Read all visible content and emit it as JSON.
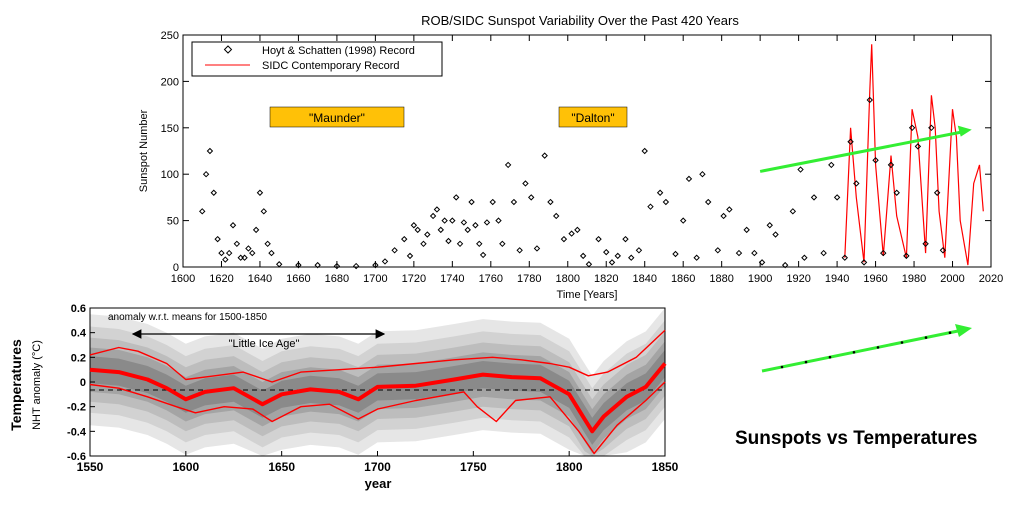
{
  "caption": "Sunspots vs Temperatures",
  "chart_data": [
    {
      "type": "scatter",
      "title": "ROB/SIDC Sunspot Variability Over the Past 420 Years",
      "xlabel": "Time [Years]",
      "ylabel": "Sunspot Number",
      "xlim": [
        1600,
        2020
      ],
      "ylim": [
        0,
        250
      ],
      "x_ticks": [
        1600,
        1620,
        1640,
        1660,
        1680,
        1700,
        1720,
        1740,
        1760,
        1780,
        1800,
        1820,
        1840,
        1860,
        1880,
        1900,
        1920,
        1940,
        1960,
        1980,
        2000,
        2020
      ],
      "y_ticks": [
        0,
        50,
        100,
        150,
        200,
        250
      ],
      "grid": false,
      "legend_position": "top-left",
      "annotations": [
        "\"Maunder\"",
        "\"Dalton\""
      ],
      "annotation_color": "#FFC107",
      "trend_arrow": {
        "x": [
          1900,
          2010
        ],
        "y": [
          103,
          148
        ],
        "color": "#33EE33"
      },
      "series": [
        {
          "name": "Hoyt & Schatten (1998) Record",
          "marker": "diamond",
          "color": "#000000",
          "x": [
            1610,
            1612,
            1614,
            1616,
            1618,
            1620,
            1622,
            1624,
            1626,
            1628,
            1630,
            1632,
            1634,
            1636,
            1638,
            1640,
            1642,
            1644,
            1646,
            1650,
            1660,
            1670,
            1680,
            1690,
            1700,
            1705,
            1710,
            1715,
            1718,
            1720,
            1722,
            1725,
            1727,
            1730,
            1732,
            1734,
            1736,
            1738,
            1740,
            1742,
            1744,
            1746,
            1748,
            1750,
            1752,
            1754,
            1756,
            1758,
            1761,
            1764,
            1766,
            1769,
            1772,
            1775,
            1778,
            1781,
            1784,
            1788,
            1791,
            1794,
            1798,
            1802,
            1805,
            1808,
            1811,
            1816,
            1820,
            1823,
            1826,
            1830,
            1833,
            1837,
            1840,
            1843,
            1848,
            1851,
            1856,
            1860,
            1863,
            1867,
            1870,
            1873,
            1878,
            1881,
            1884,
            1889,
            1893,
            1897,
            1901,
            1905,
            1908,
            1913,
            1917,
            1921,
            1923,
            1928,
            1933,
            1937,
            1940,
            1944,
            1947,
            1950,
            1954,
            1957,
            1960,
            1964,
            1968,
            1971,
            1976,
            1979,
            1982,
            1986,
            1989,
            1992,
            1995
          ],
          "y": [
            60,
            100,
            125,
            80,
            30,
            15,
            8,
            15,
            45,
            25,
            10,
            10,
            20,
            15,
            40,
            80,
            60,
            25,
            15,
            3,
            2,
            2,
            1,
            1,
            2,
            6,
            18,
            30,
            12,
            45,
            40,
            25,
            35,
            55,
            62,
            40,
            50,
            28,
            50,
            75,
            25,
            48,
            40,
            70,
            45,
            25,
            13,
            48,
            70,
            50,
            25,
            110,
            70,
            18,
            90,
            75,
            20,
            120,
            70,
            55,
            30,
            36,
            40,
            12,
            3,
            30,
            16,
            5,
            12,
            30,
            10,
            18,
            125,
            65,
            80,
            70,
            14,
            50,
            95,
            10,
            100,
            70,
            18,
            55,
            62,
            15,
            40,
            15,
            5,
            45,
            35,
            2,
            60,
            105,
            10,
            75,
            15,
            110,
            75,
            10,
            135,
            90,
            5,
            180,
            115,
            15,
            110,
            80,
            12,
            150,
            130,
            25,
            150,
            80,
            18
          ]
        },
        {
          "name": "SIDC Contemporary Record",
          "line": true,
          "color": "#FF0000",
          "x": [
            1944,
            1947,
            1950,
            1954,
            1957,
            1958,
            1960,
            1964,
            1968,
            1971,
            1976,
            1979,
            1982,
            1986,
            1989,
            1991,
            1993,
            1996,
            2000,
            2002,
            2004,
            2008,
            2011,
            2014,
            2016
          ],
          "y": [
            10,
            150,
            75,
            5,
            190,
            240,
            110,
            12,
            120,
            55,
            10,
            170,
            140,
            15,
            185,
            150,
            60,
            10,
            170,
            140,
            50,
            2,
            90,
            110,
            60
          ]
        }
      ]
    },
    {
      "type": "line",
      "title": "anomaly w.r.t. means for 1500-1850",
      "xlabel": "year",
      "ylabel": "Temperatures",
      "ylabel2": "NHT anomaly (°C)",
      "xlim": [
        1550,
        1850
      ],
      "ylim": [
        -0.6,
        0.6
      ],
      "x_ticks": [
        1550,
        1600,
        1650,
        1700,
        1750,
        1800,
        1850
      ],
      "y_ticks": [
        0.6,
        0.4,
        0.2,
        0,
        -0.2,
        -0.4,
        -0.6
      ],
      "y_tick_labels": [
        "0.6",
        "0.4",
        "0.2",
        "0",
        "-0.2",
        "-0.4",
        "-0.6"
      ],
      "annotations": [
        "\"Little Ice Age\""
      ],
      "span_arrow": [
        1570,
        1705
      ],
      "trend_arrow": {
        "color": "#33EE33"
      },
      "series": [
        {
          "color": "#FF0000",
          "x": [
            1550,
            1565,
            1580,
            1590,
            1600,
            1610,
            1625,
            1640,
            1650,
            1665,
            1680,
            1690,
            1700,
            1720,
            1740,
            1755,
            1770,
            1785,
            1800,
            1808,
            1812,
            1818,
            1830,
            1840,
            1850
          ],
          "y": [
            0.1,
            0.08,
            0.02,
            -0.05,
            -0.14,
            -0.08,
            -0.05,
            -0.18,
            -0.1,
            -0.06,
            -0.08,
            -0.14,
            -0.04,
            -0.03,
            0.02,
            0.06,
            0.04,
            0.03,
            -0.1,
            -0.3,
            -0.4,
            -0.28,
            -0.12,
            -0.04,
            0.15
          ]
        },
        {
          "color": "#FF0000",
          "x": [
            1550,
            1565,
            1575,
            1590,
            1600,
            1615,
            1630,
            1645,
            1660,
            1680,
            1700,
            1720,
            1740,
            1760,
            1775,
            1790,
            1800,
            1810,
            1820,
            1835,
            1850
          ],
          "y": [
            0.22,
            0.28,
            0.25,
            0.15,
            0.02,
            0.05,
            0.08,
            0.0,
            0.08,
            0.1,
            0.12,
            0.15,
            0.18,
            0.2,
            0.18,
            0.15,
            0.12,
            0.05,
            0.08,
            0.2,
            0.42
          ]
        },
        {
          "color": "#FF0000",
          "x": [
            1550,
            1565,
            1580,
            1595,
            1605,
            1620,
            1635,
            1645,
            1660,
            1675,
            1690,
            1700,
            1720,
            1745,
            1752,
            1762,
            1772,
            1790,
            1805,
            1813,
            1825,
            1840,
            1850
          ],
          "y": [
            -0.02,
            -0.05,
            -0.12,
            -0.2,
            -0.25,
            -0.2,
            -0.22,
            -0.32,
            -0.2,
            -0.18,
            -0.3,
            -0.22,
            -0.15,
            -0.08,
            -0.2,
            -0.32,
            -0.15,
            -0.12,
            -0.4,
            -0.58,
            -0.35,
            -0.15,
            0.0
          ]
        }
      ]
    }
  ]
}
